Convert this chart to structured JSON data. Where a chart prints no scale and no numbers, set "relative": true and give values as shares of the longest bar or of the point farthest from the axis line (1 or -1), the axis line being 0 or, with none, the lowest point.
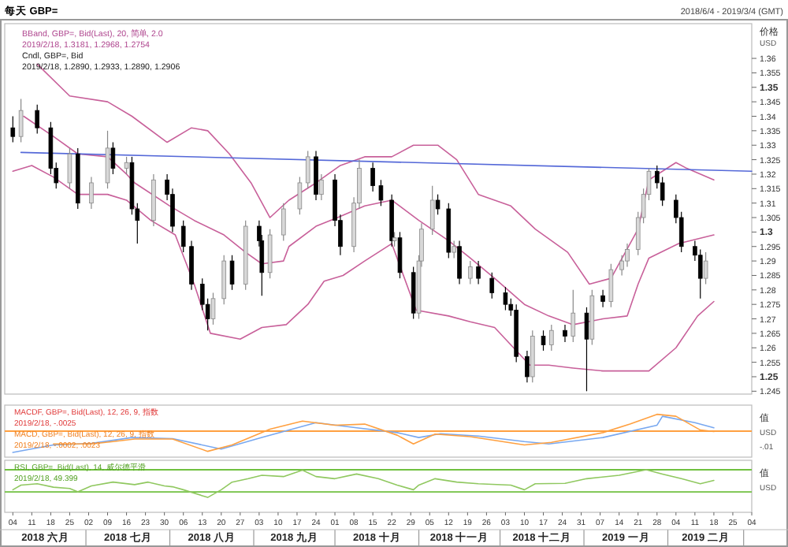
{
  "chart_data": [
    {
      "type": "candlestick",
      "title": "每天 GBP=",
      "subtitle": "2018/6/4 - 2019/3/4 (GMT)",
      "ylabel": "价格",
      "tick_labels": "y",
      "annotations": [
        "BBand, GBP=, Bid(Last), 20, 简单, 2.0",
        "2019/2/18, 1.3181, 1.2968, 1.2754",
        "Cndl, GBP=, Bid",
        "2019/2/18, 1.2890, 1.2933, 1.2890, 1.2906",
        "USD"
      ],
      "xlim": [
        "2018-06-01",
        "2019-03-04"
      ],
      "ylim": [
        1.244,
        1.372
      ],
      "yticks": [
        1.36,
        1.355,
        1.35,
        1.345,
        1.34,
        1.335,
        1.33,
        1.325,
        1.32,
        1.315,
        1.31,
        1.305,
        1.3,
        1.295,
        1.29,
        1.285,
        1.28,
        1.275,
        1.27,
        1.265,
        1.26,
        1.255,
        1.25,
        1.245
      ],
      "x": [
        "2018-06-04",
        "2018-06-07",
        "2018-06-13",
        "2018-06-18",
        "2018-06-20",
        "2018-06-25",
        "2018-06-28",
        "2018-07-03",
        "2018-07-09",
        "2018-07-11",
        "2018-07-16",
        "2018-07-18",
        "2018-07-20",
        "2018-07-26",
        "2018-07-31",
        "2018-08-02",
        "2018-08-06",
        "2018-08-09",
        "2018-08-13",
        "2018-08-15",
        "2018-08-17",
        "2018-08-21",
        "2018-08-24",
        "2018-08-29",
        "2018-09-03",
        "2018-09-04",
        "2018-09-07",
        "2018-09-12",
        "2018-09-18",
        "2018-09-21",
        "2018-09-24",
        "2018-09-26",
        "2018-10-01",
        "2018-10-03",
        "2018-10-08",
        "2018-10-10",
        "2018-10-15",
        "2018-10-18",
        "2018-10-22",
        "2018-10-23",
        "2018-10-25",
        "2018-10-30",
        "2018-11-01",
        "2018-11-02",
        "2018-11-06",
        "2018-11-08",
        "2018-11-12",
        "2018-11-14",
        "2018-11-16",
        "2018-11-20",
        "2018-11-23",
        "2018-11-28",
        "2018-12-03",
        "2018-12-05",
        "2018-12-07",
        "2018-12-11",
        "2018-12-13",
        "2018-12-17",
        "2018-12-20",
        "2018-12-25",
        "2018-12-28",
        "2019-01-02",
        "2019-01-04",
        "2019-01-08",
        "2019-01-11",
        "2019-01-15",
        "2019-01-17",
        "2019-01-21",
        "2019-01-23",
        "2019-01-25",
        "2019-01-28",
        "2019-01-30",
        "2019-02-04",
        "2019-02-06",
        "2019-02-11",
        "2019-02-13",
        "2019-02-15"
      ],
      "ohlc": [
        [
          1.336,
          1.34,
          1.331,
          1.333
        ],
        [
          1.333,
          1.346,
          1.331,
          1.342
        ],
        [
          1.342,
          1.344,
          1.334,
          1.336
        ],
        [
          1.336,
          1.338,
          1.32,
          1.322
        ],
        [
          1.322,
          1.324,
          1.315,
          1.317
        ],
        [
          1.317,
          1.329,
          1.315,
          1.327
        ],
        [
          1.327,
          1.329,
          1.308,
          1.31
        ],
        [
          1.31,
          1.319,
          1.308,
          1.317
        ],
        [
          1.317,
          1.335,
          1.315,
          1.329
        ],
        [
          1.329,
          1.331,
          1.32,
          1.322
        ],
        [
          1.322,
          1.326,
          1.32,
          1.324
        ],
        [
          1.324,
          1.326,
          1.306,
          1.308
        ],
        [
          1.308,
          1.31,
          1.296,
          1.304
        ],
        [
          1.304,
          1.32,
          1.302,
          1.318
        ],
        [
          1.318,
          1.32,
          1.311,
          1.313
        ],
        [
          1.313,
          1.315,
          1.3,
          1.302
        ],
        [
          1.302,
          1.304,
          1.293,
          1.295
        ],
        [
          1.295,
          1.297,
          1.28,
          1.282
        ],
        [
          1.282,
          1.284,
          1.273,
          1.275
        ],
        [
          1.275,
          1.277,
          1.266,
          1.27
        ],
        [
          1.27,
          1.279,
          1.268,
          1.277
        ],
        [
          1.277,
          1.292,
          1.275,
          1.29
        ],
        [
          1.29,
          1.292,
          1.28,
          1.282
        ],
        [
          1.282,
          1.304,
          1.28,
          1.302
        ],
        [
          1.302,
          1.304,
          1.295,
          1.297
        ],
        [
          1.297,
          1.299,
          1.278,
          1.286
        ],
        [
          1.286,
          1.301,
          1.284,
          1.299
        ],
        [
          1.299,
          1.31,
          1.297,
          1.308
        ],
        [
          1.308,
          1.319,
          1.306,
          1.317
        ],
        [
          1.317,
          1.328,
          1.315,
          1.326
        ],
        [
          1.326,
          1.328,
          1.311,
          1.313
        ],
        [
          1.313,
          1.32,
          1.311,
          1.318
        ],
        [
          1.318,
          1.32,
          1.302,
          1.304
        ],
        [
          1.304,
          1.306,
          1.292,
          1.295
        ],
        [
          1.295,
          1.312,
          1.293,
          1.31
        ],
        [
          1.31,
          1.325,
          1.308,
          1.322
        ],
        [
          1.322,
          1.324,
          1.314,
          1.316
        ],
        [
          1.316,
          1.318,
          1.309,
          1.311
        ],
        [
          1.311,
          1.313,
          1.295,
          1.297
        ],
        [
          1.297,
          1.3,
          1.295,
          1.298
        ],
        [
          1.298,
          1.3,
          1.284,
          1.286
        ],
        [
          1.286,
          1.288,
          1.27,
          1.272
        ],
        [
          1.272,
          1.292,
          1.27,
          1.29
        ],
        [
          1.29,
          1.303,
          1.288,
          1.301
        ],
        [
          1.301,
          1.316,
          1.299,
          1.311
        ],
        [
          1.311,
          1.313,
          1.306,
          1.308
        ],
        [
          1.308,
          1.31,
          1.291,
          1.293
        ],
        [
          1.293,
          1.297,
          1.291,
          1.295
        ],
        [
          1.295,
          1.297,
          1.282,
          1.284
        ],
        [
          1.284,
          1.29,
          1.282,
          1.288
        ],
        [
          1.288,
          1.29,
          1.282,
          1.284
        ],
        [
          1.284,
          1.286,
          1.277,
          1.279
        ],
        [
          1.279,
          1.281,
          1.273,
          1.275
        ],
        [
          1.275,
          1.277,
          1.271,
          1.273
        ],
        [
          1.273,
          1.275,
          1.255,
          1.257
        ],
        [
          1.257,
          1.259,
          1.248,
          1.25
        ],
        [
          1.25,
          1.266,
          1.248,
          1.264
        ],
        [
          1.264,
          1.266,
          1.259,
          1.261
        ],
        [
          1.261,
          1.268,
          1.259,
          1.266
        ],
        [
          1.266,
          1.268,
          1.262,
          1.264
        ],
        [
          1.264,
          1.28,
          1.262,
          1.272
        ],
        [
          1.272,
          1.274,
          1.245,
          1.263
        ],
        [
          1.263,
          1.28,
          1.261,
          1.278
        ],
        [
          1.278,
          1.28,
          1.274,
          1.276
        ],
        [
          1.276,
          1.289,
          1.274,
          1.287
        ],
        [
          1.287,
          1.292,
          1.285,
          1.29
        ],
        [
          1.29,
          1.296,
          1.288,
          1.294
        ],
        [
          1.294,
          1.307,
          1.292,
          1.305
        ],
        [
          1.305,
          1.315,
          1.303,
          1.313
        ],
        [
          1.313,
          1.322,
          1.311,
          1.321
        ],
        [
          1.321,
          1.323,
          1.315,
          1.317
        ],
        [
          1.317,
          1.319,
          1.309,
          1.311
        ],
        [
          1.311,
          1.313,
          1.303,
          1.305
        ],
        [
          1.305,
          1.307,
          1.293,
          1.295
        ],
        [
          1.295,
          1.297,
          1.29,
          1.292
        ],
        [
          1.292,
          1.294,
          1.277,
          1.284
        ],
        [
          1.284,
          1.293,
          1.282,
          1.29
        ]
      ],
      "series": [
        {
          "type": "line",
          "color": "#c8609a",
          "x": [
            "2018-06-13",
            "2018-06-25",
            "2018-07-09",
            "2018-07-18",
            "2018-07-31",
            "2018-08-09",
            "2018-08-15",
            "2018-08-23",
            "2018-08-31",
            "2018-09-07",
            "2018-09-14",
            "2018-09-24",
            "2018-10-03",
            "2018-10-12",
            "2018-10-22",
            "2018-10-30",
            "2018-11-08",
            "2018-11-15",
            "2018-11-23",
            "2018-12-05",
            "2018-12-14",
            "2018-12-26",
            "2019-01-03",
            "2019-01-11",
            "2019-01-21",
            "2019-01-25",
            "2019-02-04",
            "2019-02-08",
            "2019-02-18"
          ],
          "values": [
            1.358,
            1.347,
            1.345,
            1.34,
            1.331,
            1.336,
            1.335,
            1.327,
            1.317,
            1.305,
            1.311,
            1.317,
            1.323,
            1.326,
            1.326,
            1.33,
            1.33,
            1.325,
            1.313,
            1.309,
            1.301,
            1.293,
            1.282,
            1.284,
            1.301,
            1.318,
            1.324,
            1.322,
            1.318
          ]
        },
        {
          "type": "line",
          "color": "#c8609a",
          "x": [
            "2018-06-08",
            "2018-06-19",
            "2018-06-28",
            "2018-07-09",
            "2018-07-16",
            "2018-07-19",
            "2018-08-01",
            "2018-08-10",
            "2018-08-21",
            "2018-08-29",
            "2018-09-04",
            "2018-09-12",
            "2018-09-14",
            "2018-09-24",
            "2018-10-02",
            "2018-10-12",
            "2018-10-22",
            "2018-11-01",
            "2018-11-12",
            "2018-11-20",
            "2018-11-29",
            "2018-12-10",
            "2018-12-19",
            "2018-12-28",
            "2019-01-08",
            "2019-01-17",
            "2019-01-21",
            "2019-01-25",
            "2019-02-05",
            "2019-02-18"
          ],
          "values": [
            1.34,
            1.333,
            1.327,
            1.326,
            1.32,
            1.317,
            1.309,
            1.304,
            1.299,
            1.293,
            1.289,
            1.29,
            1.295,
            1.302,
            1.305,
            1.309,
            1.311,
            1.304,
            1.297,
            1.291,
            1.284,
            1.275,
            1.271,
            1.268,
            1.27,
            1.271,
            1.282,
            1.291,
            1.296,
            1.299
          ]
        },
        {
          "type": "line",
          "color": "#c8609a",
          "x": [
            "2018-06-04",
            "2018-06-11",
            "2018-06-19",
            "2018-06-28",
            "2018-07-09",
            "2018-07-16",
            "2018-07-25",
            "2018-08-03",
            "2018-08-10",
            "2018-08-16",
            "2018-08-27",
            "2018-09-04",
            "2018-09-13",
            "2018-09-21",
            "2018-09-27",
            "2018-10-04",
            "2018-10-12",
            "2018-10-22",
            "2018-10-31",
            "2018-11-12",
            "2018-11-20",
            "2018-11-29",
            "2018-12-12",
            "2018-12-19",
            "2018-12-28",
            "2019-01-08",
            "2019-01-18",
            "2019-01-25",
            "2019-02-04",
            "2019-02-12",
            "2019-02-18"
          ],
          "values": [
            1.321,
            1.323,
            1.319,
            1.313,
            1.313,
            1.311,
            1.304,
            1.299,
            1.282,
            1.265,
            1.263,
            1.267,
            1.268,
            1.275,
            1.283,
            1.285,
            1.29,
            1.296,
            1.273,
            1.271,
            1.269,
            1.267,
            1.254,
            1.254,
            1.253,
            1.252,
            1.252,
            1.252,
            1.26,
            1.271,
            1.276
          ]
        },
        {
          "type": "line",
          "color": "#5468d8",
          "x": [
            "2018-06-07",
            "2019-03-04"
          ],
          "values": [
            1.3275,
            1.321
          ]
        }
      ]
    },
    {
      "type": "line",
      "ylabel": "值",
      "relative": true,
      "tick_labels": false,
      "ref_lines": [
        {
          "axis": "y",
          "value": 0,
          "color": "#ffa040"
        }
      ],
      "annotations": [
        "MACDF, GBP=, Bid(Last), 12, 26, 9, 指数",
        "2019/2/18, -.0025",
        "MACD, GBP=, Bid(Last), 12, 26, 9, 指数",
        "2019/2/18, -.0002, .0023",
        "USD",
        "-.01"
      ],
      "xlim": [
        "2018-06-01",
        "2019-03-04"
      ],
      "series": [
        {
          "color": "#78a8f0",
          "x": [
            "2018-06-04",
            "2018-06-19",
            "2018-07-03",
            "2018-07-18",
            "2018-08-02",
            "2018-08-20",
            "2018-09-04",
            "2018-09-24",
            "2018-10-09",
            "2018-10-24",
            "2018-11-01",
            "2018-11-09",
            "2018-11-23",
            "2018-12-10",
            "2018-12-19",
            "2019-01-08",
            "2019-01-28",
            "2019-01-30",
            "2019-02-11",
            "2019-02-18"
          ],
          "values": [
            -1,
            -0.65,
            -0.58,
            -0.3,
            -0.35,
            -0.84,
            -0.3,
            0.4,
            0.16,
            -0.07,
            -0.3,
            -0.12,
            -0.23,
            -0.49,
            -0.6,
            -0.3,
            0.28,
            0.7,
            0.4,
            0.16
          ]
        },
        {
          "color": "#ffa040",
          "x": [
            "2018-06-19",
            "2018-07-03",
            "2018-07-11",
            "2018-07-19",
            "2018-08-02",
            "2018-08-15",
            "2018-08-24",
            "2018-09-07",
            "2018-09-19",
            "2018-10-01",
            "2018-10-12",
            "2018-10-24",
            "2018-10-30",
            "2018-11-07",
            "2018-11-20",
            "2018-12-10",
            "2018-12-20",
            "2019-01-08",
            "2019-01-18",
            "2019-01-28",
            "2019-02-04",
            "2019-02-13",
            "2019-02-18"
          ],
          "values": [
            -0.6,
            -0.6,
            -0.49,
            -0.37,
            -0.37,
            -0.95,
            -0.65,
            0.09,
            0.47,
            0.28,
            0.33,
            -0.19,
            -0.6,
            -0.14,
            -0.26,
            -0.65,
            -0.53,
            -0.07,
            0.33,
            0.79,
            0.7,
            0.05,
            -0.02
          ]
        }
      ]
    },
    {
      "type": "line",
      "ylabel": "值",
      "relative": true,
      "tick_labels": "x",
      "annotations": [
        "RSI, GBP=, Bid(Last), 14, 威尔德平滑",
        "2019/2/18, 49.399",
        "USD",
        "2018 六月",
        "2018 七月",
        "2018 八月",
        "2018 九月",
        "2018 十月",
        "2018 十一月",
        "2018 十二月",
        "2019 一月",
        "2019 二月"
      ],
      "xlim": [
        "2018-06-01",
        "2019-03-04"
      ],
      "xticks": [
        {
          "value": "2018-06-04",
          "label": "04"
        },
        {
          "value": "2018-06-11",
          "label": "11"
        },
        {
          "value": "2018-06-18",
          "label": "18"
        },
        {
          "value": "2018-06-25",
          "label": "25"
        },
        {
          "value": "2018-07-02",
          "label": "02"
        },
        {
          "value": "2018-07-09",
          "label": "09"
        },
        {
          "value": "2018-07-16",
          "label": "16"
        },
        {
          "value": "2018-07-23",
          "label": "23"
        },
        {
          "value": "2018-07-30",
          "label": "30"
        },
        {
          "value": "2018-08-06",
          "label": "06"
        },
        {
          "value": "2018-08-13",
          "label": "13"
        },
        {
          "value": "2018-08-20",
          "label": "20"
        },
        {
          "value": "2018-08-27",
          "label": "27"
        },
        {
          "value": "2018-09-03",
          "label": "03"
        },
        {
          "value": "2018-09-10",
          "label": "10"
        },
        {
          "value": "2018-09-17",
          "label": "17"
        },
        {
          "value": "2018-09-24",
          "label": "24"
        },
        {
          "value": "2018-10-01",
          "label": "01"
        },
        {
          "value": "2018-10-08",
          "label": "08"
        },
        {
          "value": "2018-10-15",
          "label": "15"
        },
        {
          "value": "2018-10-22",
          "label": "22"
        },
        {
          "value": "2018-10-29",
          "label": "29"
        },
        {
          "value": "2018-11-05",
          "label": "05"
        },
        {
          "value": "2018-11-12",
          "label": "12"
        },
        {
          "value": "2018-11-19",
          "label": "19"
        },
        {
          "value": "2018-11-26",
          "label": "26"
        },
        {
          "value": "2018-12-03",
          "label": "03"
        },
        {
          "value": "2018-12-10",
          "label": "10"
        },
        {
          "value": "2018-12-17",
          "label": "17"
        },
        {
          "value": "2018-12-24",
          "label": "24"
        },
        {
          "value": "2018-12-31",
          "label": "31"
        },
        {
          "value": "2019-01-07",
          "label": "07"
        },
        {
          "value": "2019-01-14",
          "label": "14"
        },
        {
          "value": "2019-01-21",
          "label": "21"
        },
        {
          "value": "2019-01-28",
          "label": "28"
        },
        {
          "value": "2019-02-04",
          "label": "04"
        },
        {
          "value": "2019-02-11",
          "label": "11"
        },
        {
          "value": "2019-02-18",
          "label": "18"
        },
        {
          "value": "2019-02-25",
          "label": "25"
        },
        {
          "value": "2019-03-04",
          "label": "04"
        }
      ],
      "ref_lines": [
        {
          "axis": "y",
          "value": 1,
          "color": "#70c040"
        },
        {
          "axis": "y",
          "value": 0.48,
          "color": "#70c040"
        }
      ],
      "series": [
        {
          "color": "#90c860",
          "x": [
            "2018-06-04",
            "2018-06-07",
            "2018-06-13",
            "2018-06-19",
            "2018-06-25",
            "2018-06-28",
            "2018-07-03",
            "2018-07-11",
            "2018-07-19",
            "2018-07-24",
            "2018-07-30",
            "2018-08-02",
            "2018-08-06",
            "2018-08-13",
            "2018-08-15",
            "2018-08-20",
            "2018-08-24",
            "2018-08-30",
            "2018-09-04",
            "2018-09-12",
            "2018-09-19",
            "2018-09-24",
            "2018-10-01",
            "2018-10-09",
            "2018-10-17",
            "2018-10-24",
            "2018-10-30",
            "2018-11-01",
            "2018-11-07",
            "2018-11-15",
            "2018-11-23",
            "2018-12-05",
            "2018-12-10",
            "2018-12-14",
            "2018-12-25",
            "2019-01-02",
            "2019-01-14",
            "2019-01-24",
            "2019-01-30",
            "2019-02-06",
            "2019-02-13",
            "2019-02-18"
          ],
          "values": [
            0.53,
            0.64,
            0.67,
            0.59,
            0.56,
            0.48,
            0.62,
            0.71,
            0.65,
            0.71,
            0.62,
            0.6,
            0.53,
            0.39,
            0.35,
            0.53,
            0.71,
            0.79,
            0.87,
            0.84,
            0.99,
            0.84,
            0.79,
            0.9,
            0.79,
            0.64,
            0.53,
            0.64,
            0.79,
            0.71,
            0.67,
            0.64,
            0.53,
            0.67,
            0.68,
            0.79,
            0.87,
            1,
            0.9,
            0.79,
            0.67,
            0.75
          ]
        }
      ]
    }
  ]
}
